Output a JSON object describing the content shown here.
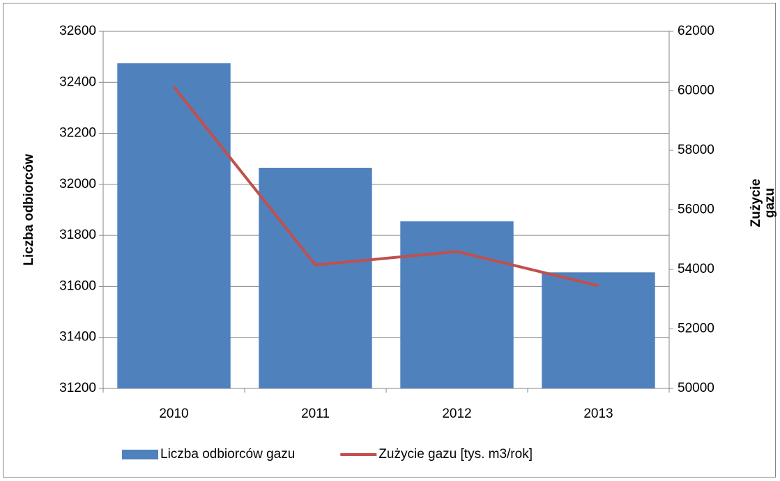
{
  "chart_data": {
    "type": "bar_line",
    "categories": [
      "2010",
      "2011",
      "2012",
      "2013"
    ],
    "series": [
      {
        "name": "Liczba odbiorców gazu",
        "type": "bar",
        "color": "#4f81bd",
        "values": [
          32475,
          32065,
          31855,
          31655
        ]
      },
      {
        "name": "Zużycie gazu [tys. m3/rok]",
        "type": "line",
        "axis": "y2",
        "color": "#c0504d",
        "values": [
          60130,
          54150,
          54600,
          53450
        ]
      }
    ],
    "ylabel": "Liczba odbiorców",
    "y2label": "Zużycie gazu",
    "ylim": [
      31200,
      32600
    ],
    "yticks": [
      31200,
      31400,
      31600,
      31800,
      32000,
      32200,
      32400,
      32600
    ],
    "y2lim": [
      50000,
      62000
    ],
    "y2ticks": [
      50000,
      52000,
      54000,
      56000,
      58000,
      60000,
      62000
    ],
    "grid": true,
    "legend": "bottom"
  }
}
